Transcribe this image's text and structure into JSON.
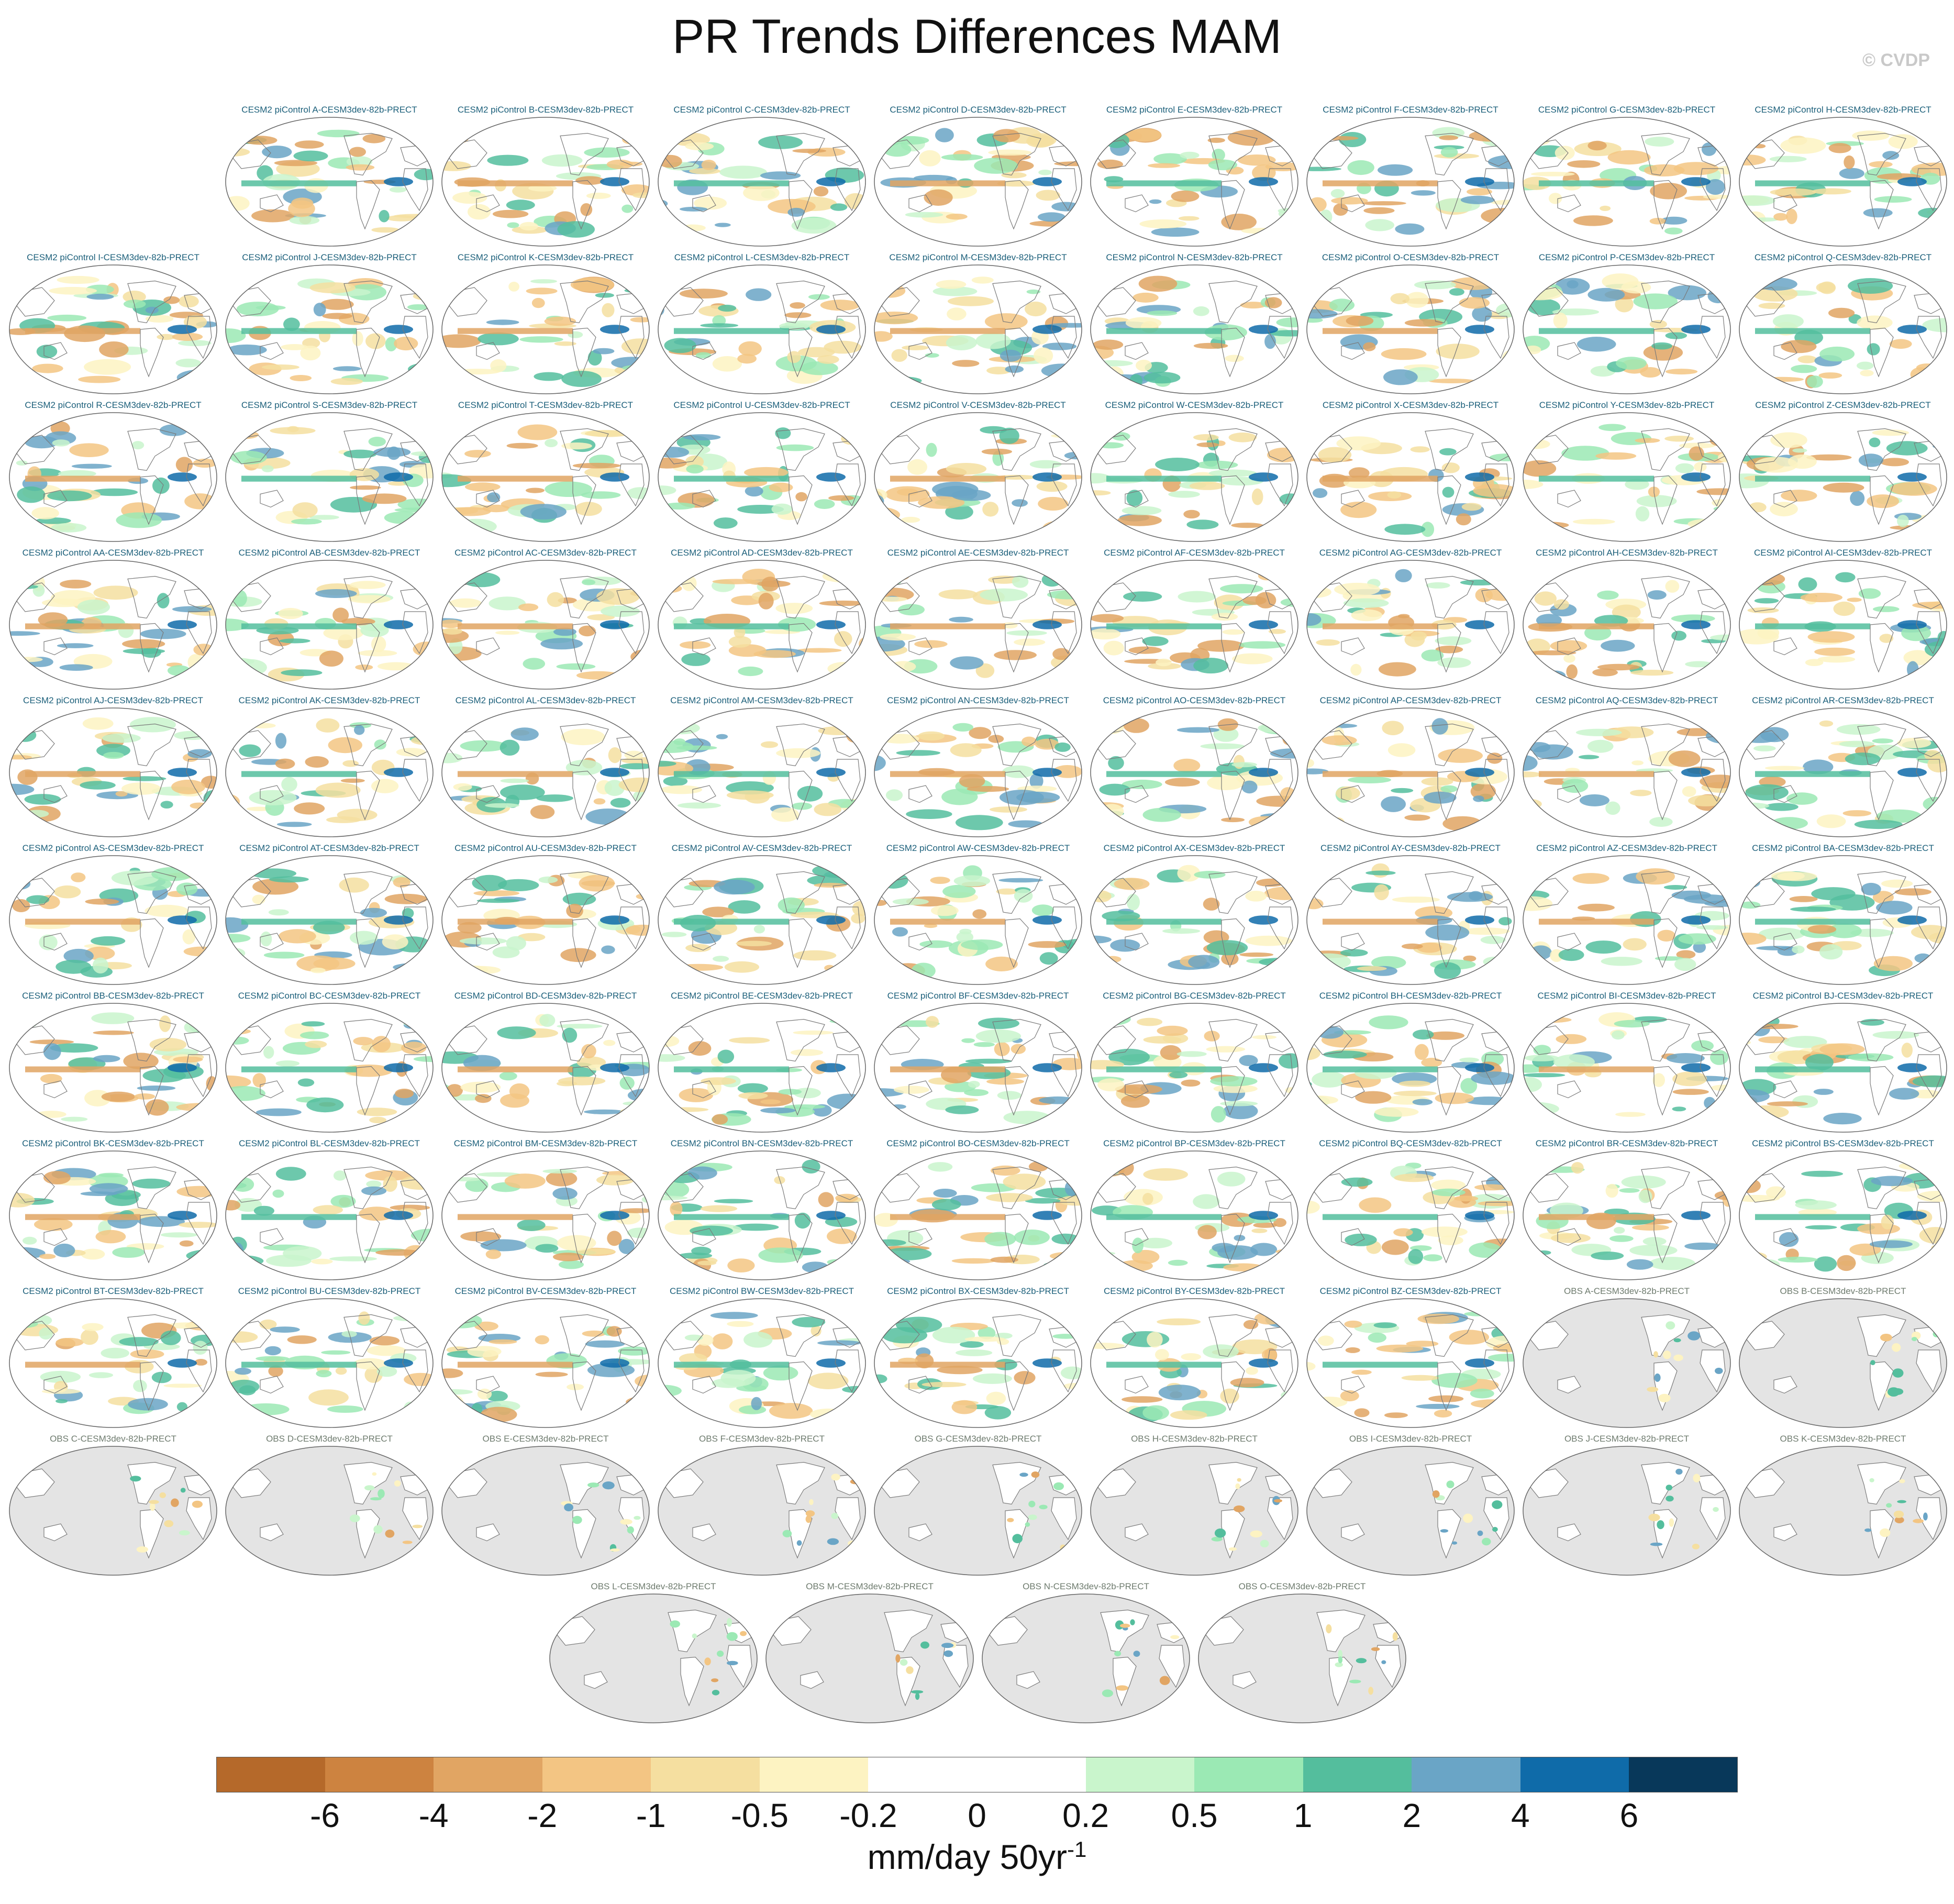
{
  "title": "PR Trends Differences MAM",
  "credit": "© CVDP",
  "units": {
    "base": "mm/day 50yr",
    "exponent": "-1"
  },
  "panel_suffix": "-CESM3dev-82b-PRECT",
  "model_prefix": "CESM2 piControl ",
  "obs_prefix": "OBS ",
  "model_members": [
    "A",
    "B",
    "C",
    "D",
    "E",
    "F",
    "G",
    "H",
    "I",
    "J",
    "K",
    "L",
    "M",
    "N",
    "O",
    "P",
    "Q",
    "R",
    "S",
    "T",
    "U",
    "V",
    "W",
    "X",
    "Y",
    "Z",
    "AA",
    "AB",
    "AC",
    "AD",
    "AE",
    "AF",
    "AG",
    "AH",
    "AI",
    "AJ",
    "AK",
    "AL",
    "AM",
    "AN",
    "AO",
    "AP",
    "AQ",
    "AR",
    "AS",
    "AT",
    "AU",
    "AV",
    "AW",
    "AX",
    "AY",
    "AZ",
    "BA",
    "BB",
    "BC",
    "BD",
    "BE",
    "BF",
    "BG",
    "BH",
    "BI",
    "BJ",
    "BK",
    "BL",
    "BM",
    "BN",
    "BO",
    "BP",
    "BQ",
    "BR",
    "BS",
    "BT",
    "BU",
    "BV",
    "BW",
    "BX",
    "BY",
    "BZ"
  ],
  "obs_members": [
    "A",
    "B",
    "C",
    "D",
    "E",
    "F",
    "G",
    "H",
    "I",
    "J",
    "K",
    "L",
    "M",
    "N",
    "O"
  ],
  "colorbar": {
    "colors": [
      "#b5692a",
      "#cd8340",
      "#e1a563",
      "#f3c583",
      "#f5dfa0",
      "#fdf3c2",
      "#ffffff",
      "#ffffff",
      "#c9f5cc",
      "#9be9b4",
      "#54be9d",
      "#6aa5c6",
      "#0f6ba9",
      "#08385a"
    ],
    "tick_labels": [
      "-6",
      "-4",
      "-2",
      "-1",
      "-0.5",
      "-0.2",
      "0",
      "0.2",
      "0.5",
      "1",
      "2",
      "4",
      "6"
    ]
  }
}
